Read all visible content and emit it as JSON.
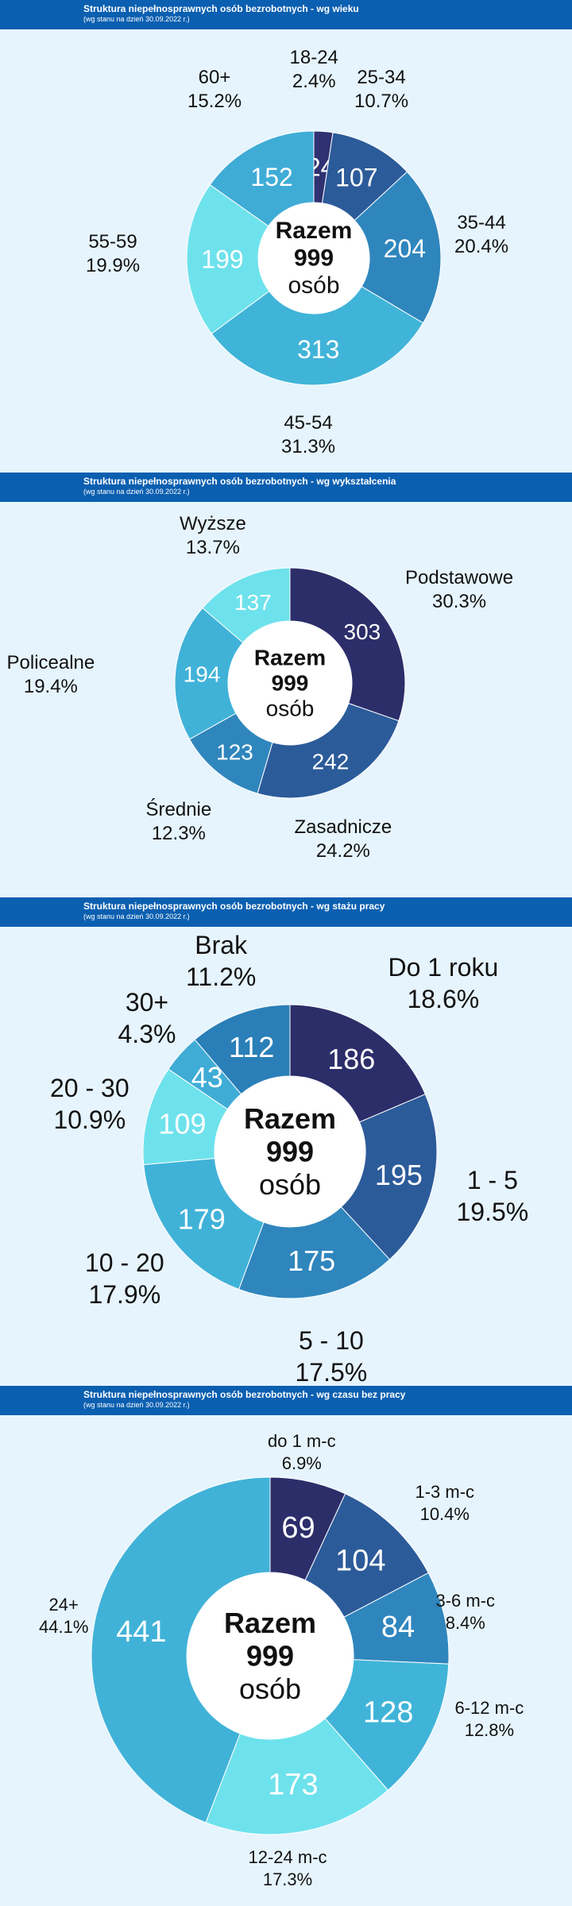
{
  "colors": {
    "header_bg": "#0b5fb0",
    "page_bg": "#e6f4fd",
    "header_text": "#ffffff",
    "hole": "#ffffff",
    "value_text": "#ffffff"
  },
  "center": {
    "razem": "Razem",
    "total": "999",
    "osob": "osób"
  },
  "chart_data": [
    {
      "type": "pie",
      "title": "Struktura niepełnosprawnych osób bezrobotnych - wg wieku",
      "subtitle": "(wg stanu na dzień 30.09.2022 r.)",
      "total": 999,
      "slices": [
        {
          "label": "18-24",
          "value": 24,
          "percent": "2.4%",
          "color": "#2f3171"
        },
        {
          "label": "25-34",
          "value": 107,
          "percent": "10.7%",
          "color": "#2c5b9a"
        },
        {
          "label": "35-44",
          "value": 204,
          "percent": "20.4%",
          "color": "#2f86bd"
        },
        {
          "label": "45-54",
          "value": 313,
          "percent": "31.3%",
          "color": "#40b4d8"
        },
        {
          "label": "55-59",
          "value": 199,
          "percent": "19.9%",
          "color": "#6ee2ec"
        },
        {
          "label": "60+",
          "value": 152,
          "percent": "15.2%",
          "color": "#3facd6"
        }
      ]
    },
    {
      "type": "pie",
      "title": "Struktura niepełnosprawnych osób bezrobotnych - wg wykształcenia",
      "subtitle": "(wg stanu na dzień 30.09.2022 r.)",
      "total": 999,
      "slices": [
        {
          "label": "Podstawowe",
          "value": 303,
          "percent": "30.3%",
          "color": "#2c2e6a"
        },
        {
          "label": "Zasadnicze",
          "value": 242,
          "percent": "24.2%",
          "color": "#2c5b9a"
        },
        {
          "label": "Średnie",
          "value": 123,
          "percent": "12.3%",
          "color": "#2f86bd"
        },
        {
          "label": "Policealne",
          "value": 194,
          "percent": "19.4%",
          "color": "#40b2d8"
        },
        {
          "label": "Wyższe",
          "value": 137,
          "percent": "13.7%",
          "color": "#6ee2ec"
        }
      ]
    },
    {
      "type": "pie",
      "title": "Struktura niepełnosprawnych osób bezrobotnych - wg stażu pracy",
      "subtitle": "(wg stanu na dzień 30.09.2022 r.)",
      "total": 999,
      "slices": [
        {
          "label": "Do 1 roku",
          "value": 186,
          "percent": "18.6%",
          "color": "#2c2e6a"
        },
        {
          "label": "1 - 5",
          "value": 195,
          "percent": "19.5%",
          "color": "#2c5b9a"
        },
        {
          "label": "5 - 10",
          "value": 175,
          "percent": "17.5%",
          "color": "#2f86bd"
        },
        {
          "label": "10 - 20",
          "value": 179,
          "percent": "17.9%",
          "color": "#40b2d8"
        },
        {
          "label": "20 - 30",
          "value": 109,
          "percent": "10.9%",
          "color": "#6ee2ec"
        },
        {
          "label": "30+",
          "value": 43,
          "percent": "4.3%",
          "color": "#3facd6"
        },
        {
          "label": "Brak",
          "value": 112,
          "percent": "11.2%",
          "color": "#2a7fb8"
        }
      ]
    },
    {
      "type": "pie",
      "title": "Struktura niepełnosprawnych osób bezrobotnych - wg czasu bez pracy",
      "subtitle": "(wg stanu na dzień 30.09.2022 r.)",
      "total": 999,
      "slices": [
        {
          "label": "do 1 m-c",
          "value": 69,
          "percent": "6.9%",
          "color": "#2c2e6a"
        },
        {
          "label": "1-3 m-c",
          "value": 104,
          "percent": "10.4%",
          "color": "#2c5b9a"
        },
        {
          "label": "3-6 m-c",
          "value": 84,
          "percent": "8.4%",
          "color": "#2f86bd"
        },
        {
          "label": "6-12 m-c",
          "value": 128,
          "percent": "12.8%",
          "color": "#40b4d8"
        },
        {
          "label": "12-24 m-c",
          "value": 173,
          "percent": "17.3%",
          "color": "#6ee2ec"
        },
        {
          "label": "24+",
          "value": 441,
          "percent": "44.1%",
          "color": "#40b2d8"
        }
      ]
    }
  ]
}
